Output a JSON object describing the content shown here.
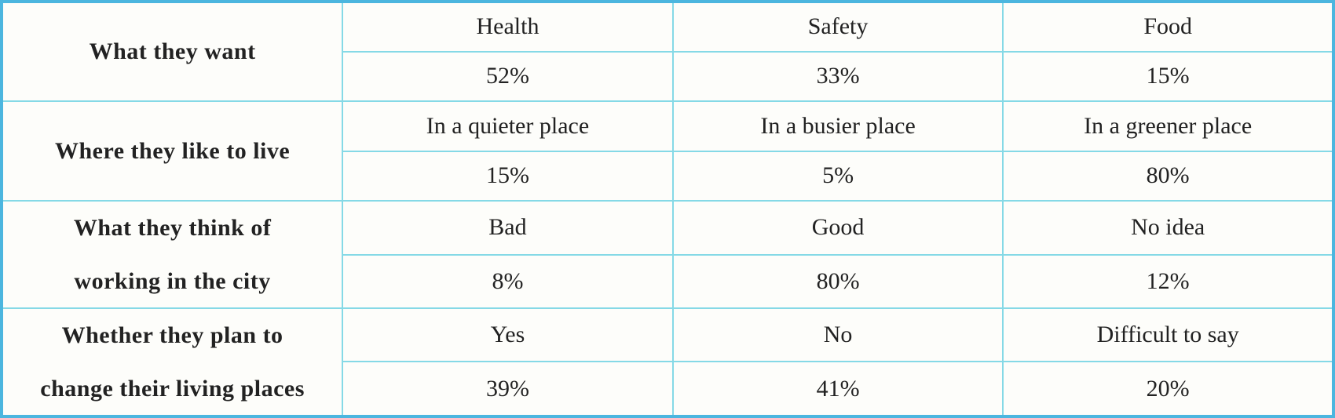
{
  "table": {
    "groups": [
      {
        "label_lines": [
          "What they want"
        ],
        "options": [
          "Health",
          "Safety",
          "Food"
        ],
        "values": [
          "52%",
          "33%",
          "15%"
        ]
      },
      {
        "label_lines": [
          "Where they like to live"
        ],
        "options": [
          "In a quieter place",
          "In a busier place",
          "In a greener place"
        ],
        "values": [
          "15%",
          "5%",
          "80%"
        ]
      },
      {
        "label_lines": [
          "What they think of",
          "working in the city"
        ],
        "options": [
          "Bad",
          "Good",
          "No idea"
        ],
        "values": [
          "8%",
          "80%",
          "12%"
        ]
      },
      {
        "label_lines": [
          "Whether they plan to",
          "change their living places"
        ],
        "options": [
          "Yes",
          "No",
          "Difficult to say"
        ],
        "values": [
          "39%",
          "41%",
          "20%"
        ]
      }
    ],
    "colors": {
      "outer_border": "#4cb6df",
      "inner_border": "#85d9e6",
      "background": "#fdfdfa",
      "label_text": "#0d0d0d",
      "data_text": "#222222"
    }
  },
  "chart_data": {
    "type": "table",
    "title": "Survey results table",
    "rows": [
      {
        "category": "What they want",
        "options": [
          "Health",
          "Safety",
          "Food"
        ],
        "percentages": [
          52,
          33,
          15
        ]
      },
      {
        "category": "Where they like to live",
        "options": [
          "In a quieter place",
          "In a busier place",
          "In a greener place"
        ],
        "percentages": [
          15,
          5,
          80
        ]
      },
      {
        "category": "What they think of working in the city",
        "options": [
          "Bad",
          "Good",
          "No idea"
        ],
        "percentages": [
          8,
          80,
          12
        ]
      },
      {
        "category": "Whether they plan to change their living places",
        "options": [
          "Yes",
          "No",
          "Difficult to say"
        ],
        "percentages": [
          39,
          41,
          20
        ]
      }
    ],
    "layout": {
      "label_column": "merged rowspan-2 per category",
      "sub_rows_per_category": [
        "option labels",
        "percentage values"
      ],
      "grid": "on",
      "grid_color": "cyan"
    }
  }
}
